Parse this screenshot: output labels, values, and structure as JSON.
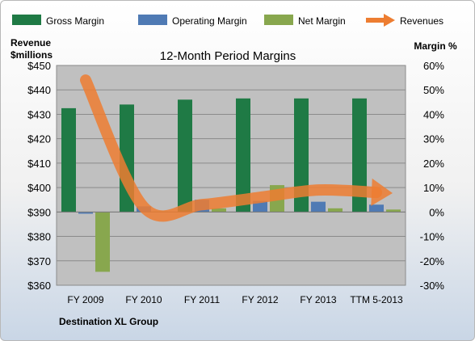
{
  "chart_data": {
    "type": "bar",
    "title": "12-Month Period Margins",
    "company": "Destination XL Group",
    "ylabel_left": [
      "Revenue",
      "$millions"
    ],
    "ylabel_right": "Margin %",
    "categories": [
      "FY 2009",
      "FY 2010",
      "FY 2011",
      "FY 2012",
      "FY 2013",
      "TTM 5-2013"
    ],
    "left_axis": {
      "min": 360,
      "max": 450,
      "ticks": [
        "$360",
        "$370",
        "$380",
        "$390",
        "$400",
        "$410",
        "$420",
        "$430",
        "$440",
        "$450"
      ]
    },
    "right_axis": {
      "min": -30,
      "max": 60,
      "ticks": [
        "-30%",
        "-20%",
        "-10%",
        "0%",
        "10%",
        "20%",
        "30%",
        "40%",
        "50%",
        "60%"
      ]
    },
    "series": [
      {
        "name": "Gross Margin",
        "kind": "bar",
        "axis": "right",
        "color": "#1f7a45",
        "values": [
          42.5,
          44.0,
          46.0,
          46.5,
          46.5,
          46.5
        ]
      },
      {
        "name": "Operating Margin",
        "kind": "bar",
        "axis": "right",
        "color": "#4f7ab4",
        "values": [
          -0.7,
          2.3,
          5.0,
          4.5,
          4.2,
          3.0
        ]
      },
      {
        "name": "Net Margin",
        "kind": "bar",
        "axis": "right",
        "color": "#88a74e",
        "values": [
          -24.5,
          0.3,
          1.5,
          11.0,
          1.5,
          1.0
        ]
      },
      {
        "name": "Revenues",
        "kind": "arrow",
        "axis": "left",
        "color": "#ed7d31",
        "values": [
          444,
          392,
          393,
          396,
          399,
          398
        ]
      }
    ],
    "grid": true,
    "legend": "top"
  }
}
